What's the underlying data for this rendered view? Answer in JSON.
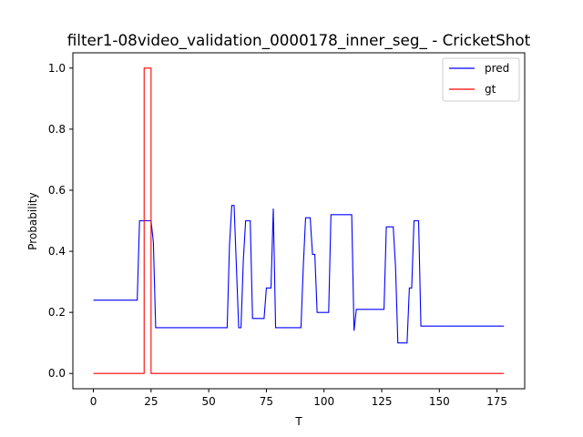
{
  "chart_data": {
    "type": "line",
    "title": "filter1-08video_validation_0000178_inner_seg_ - CricketShot",
    "xlabel": "T",
    "ylabel": "Probability",
    "xlim": [
      -8.9,
      187.0
    ],
    "ylim": [
      -0.05,
      1.05
    ],
    "xticks": [
      0,
      25,
      50,
      75,
      100,
      125,
      150,
      175
    ],
    "yticks": [
      0.0,
      0.2,
      0.4,
      0.6,
      0.8,
      1.0
    ],
    "ytick_labels": [
      "0.0",
      "0.2",
      "0.4",
      "0.6",
      "0.8",
      "1.0"
    ],
    "grid": false,
    "legend_position": "top-right",
    "series": [
      {
        "name": "pred",
        "color": "#0000ff",
        "points": [
          [
            0,
            0.24
          ],
          [
            19,
            0.24
          ],
          [
            20,
            0.5
          ],
          [
            25,
            0.5
          ],
          [
            26,
            0.43
          ],
          [
            27,
            0.15
          ],
          [
            58,
            0.15
          ],
          [
            59,
            0.42
          ],
          [
            60,
            0.55
          ],
          [
            61,
            0.55
          ],
          [
            62,
            0.35
          ],
          [
            63,
            0.15
          ],
          [
            64,
            0.15
          ],
          [
            65,
            0.37
          ],
          [
            66,
            0.5
          ],
          [
            68,
            0.5
          ],
          [
            69,
            0.18
          ],
          [
            74,
            0.18
          ],
          [
            75,
            0.28
          ],
          [
            77,
            0.28
          ],
          [
            78,
            0.54
          ],
          [
            79,
            0.15
          ],
          [
            90,
            0.15
          ],
          [
            91,
            0.35
          ],
          [
            92,
            0.51
          ],
          [
            94,
            0.51
          ],
          [
            95,
            0.39
          ],
          [
            96,
            0.39
          ],
          [
            97,
            0.2
          ],
          [
            102,
            0.2
          ],
          [
            103,
            0.52
          ],
          [
            112,
            0.52
          ],
          [
            113,
            0.14
          ],
          [
            114,
            0.21
          ],
          [
            126,
            0.21
          ],
          [
            127,
            0.48
          ],
          [
            130,
            0.48
          ],
          [
            131,
            0.35
          ],
          [
            132,
            0.1
          ],
          [
            136,
            0.1
          ],
          [
            137,
            0.28
          ],
          [
            138,
            0.28
          ],
          [
            139,
            0.5
          ],
          [
            141,
            0.5
          ],
          [
            142,
            0.155
          ],
          [
            178,
            0.155
          ]
        ]
      },
      {
        "name": "gt",
        "color": "#ff0000",
        "points": [
          [
            0,
            0
          ],
          [
            22,
            0
          ],
          [
            22,
            1
          ],
          [
            25,
            1
          ],
          [
            25,
            0
          ],
          [
            178,
            0
          ]
        ]
      }
    ]
  }
}
